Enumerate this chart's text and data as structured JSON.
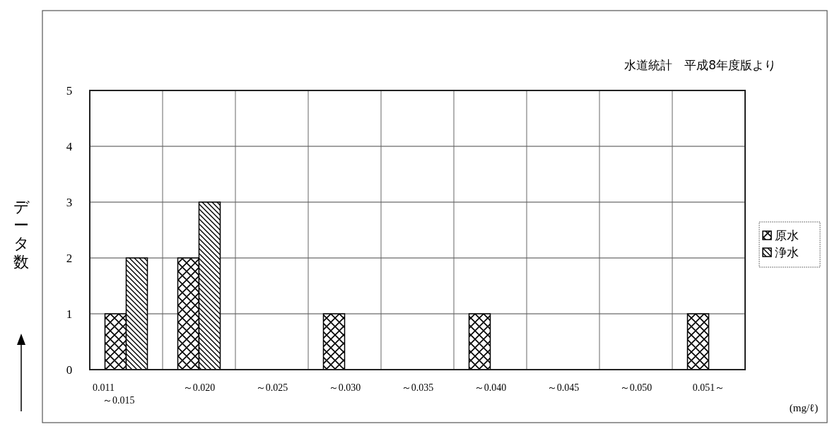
{
  "chart_data": {
    "type": "bar",
    "xlabel": "(mg/ℓ)",
    "ylabel": "データ数",
    "annotations": [
      "水道統計　平成8年度版より"
    ],
    "categories": [
      "0.011\n～0.015",
      "～0.020",
      "～0.025",
      "～0.030",
      "～0.035",
      "～0.040",
      "～0.045",
      "～0.050",
      "0.051～"
    ],
    "series": [
      {
        "name": "原水",
        "color": "#000000",
        "values": [
          1,
          2,
          0,
          1,
          0,
          1,
          0,
          0,
          1
        ]
      },
      {
        "name": "浄水",
        "color": "#000000",
        "values": [
          2,
          3,
          0,
          0,
          0,
          0,
          0,
          0,
          0
        ]
      }
    ],
    "ylim": [
      0,
      5
    ],
    "yticks": [
      0,
      1,
      2,
      3,
      4,
      5
    ],
    "grid": true,
    "legend": "right"
  }
}
